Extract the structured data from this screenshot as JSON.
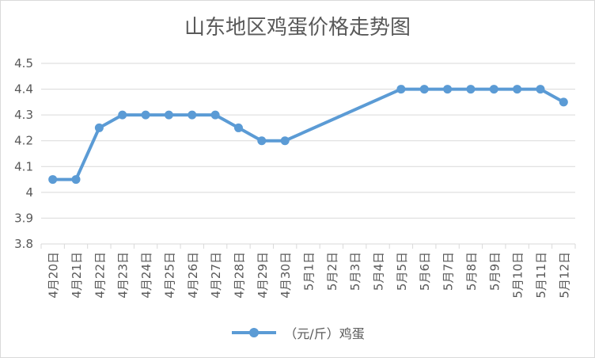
{
  "chart_data": {
    "type": "line",
    "title": "山东地区鸡蛋价格走势图",
    "categories": [
      "4月20日",
      "4月21日",
      "4月22日",
      "4月23日",
      "4月24日",
      "4月25日",
      "4月26日",
      "4月27日",
      "4月28日",
      "4月29日",
      "4月30日",
      "5月1日",
      "5月2日",
      "5月3日",
      "5月4日",
      "5月5日",
      "5月6日",
      "5月7日",
      "5月8日",
      "5月9日",
      "5月10日",
      "5月11日",
      "5月12日"
    ],
    "series": [
      {
        "name": "（元/斤）鸡蛋",
        "color": "#5b9bd5",
        "values": [
          4.05,
          4.05,
          4.25,
          4.3,
          4.3,
          4.3,
          4.3,
          4.3,
          4.25,
          4.2,
          4.2,
          null,
          null,
          null,
          null,
          4.4,
          4.4,
          4.4,
          4.4,
          4.4,
          4.4,
          4.4,
          4.35
        ]
      }
    ],
    "ylim": [
      3.8,
      4.5
    ],
    "yticks": [
      "3.8",
      "3.9",
      "4",
      "4.1",
      "4.2",
      "4.3",
      "4.4",
      "4.5"
    ],
    "grid": true,
    "legend": "bottom"
  }
}
